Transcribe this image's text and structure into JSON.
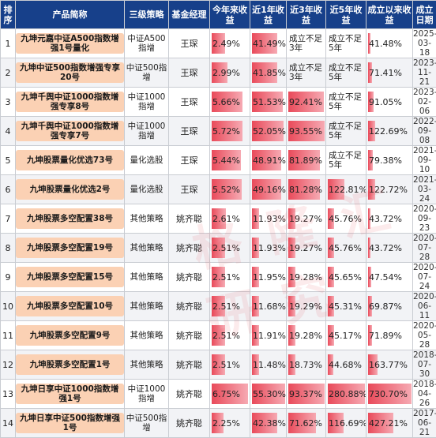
{
  "columns": {
    "idx": "排序",
    "name": "产品简称",
    "category": "三级策略",
    "manager": "基金经理",
    "ytd": "今年来收益",
    "y1": "近1年收益",
    "y3": "近3年收益",
    "y5": "近5年收益",
    "since": "成立以来收益",
    "date": "成立日期"
  },
  "rows": [
    {
      "idx": "1",
      "name": "九坤元嘉中证A500指数增强1号量化",
      "category": "中证A500指增",
      "manager": "王琛",
      "ytd": {
        "text": "2.49%",
        "v": 2.49
      },
      "y1": {
        "text": "41.49%",
        "v": 41.49
      },
      "y3": {
        "text": "成立不足3年",
        "v": null
      },
      "y5": {
        "text": "成立不足5年",
        "v": null
      },
      "since": {
        "text": "41.48%",
        "v": 41.48
      },
      "date": "2025-03-18"
    },
    {
      "idx": "2",
      "name": "九坤中证500指数增强专享20号",
      "category": "中证500指增",
      "manager": "王琛",
      "ytd": {
        "text": "2.99%",
        "v": 2.99
      },
      "y1": {
        "text": "41.85%",
        "v": 41.85
      },
      "y3": {
        "text": "成立不足3年",
        "v": null
      },
      "y5": {
        "text": "成立不足5年",
        "v": null
      },
      "since": {
        "text": "71.41%",
        "v": 71.41
      },
      "date": "2023-11-21"
    },
    {
      "idx": "3",
      "name": "九坤千舆中证1000指数增强专享8号",
      "category": "中证1000指增",
      "manager": "王琛",
      "ytd": {
        "text": "5.66%",
        "v": 5.66
      },
      "y1": {
        "text": "51.53%",
        "v": 51.53
      },
      "y3": {
        "text": "92.41%",
        "v": 92.41
      },
      "y5": {
        "text": "成立不足5年",
        "v": null
      },
      "since": {
        "text": "91.05%",
        "v": 91.05
      },
      "date": "2023-02-06"
    },
    {
      "idx": "4",
      "name": "九坤千舆中证1000指数增强专享7号",
      "category": "中证1000指增",
      "manager": "王琛",
      "ytd": {
        "text": "5.72%",
        "v": 5.72
      },
      "y1": {
        "text": "52.05%",
        "v": 52.05
      },
      "y3": {
        "text": "93.55%",
        "v": 93.55
      },
      "y5": {
        "text": "成立不足5年",
        "v": null
      },
      "since": {
        "text": "122.69%",
        "v": 122.69
      },
      "date": "2022-09-08"
    },
    {
      "idx": "5",
      "name": "九坤股票量化优选73号",
      "category": "量化选股",
      "manager": "王琛",
      "ytd": {
        "text": "5.44%",
        "v": 5.44
      },
      "y1": {
        "text": "48.91%",
        "v": 48.91
      },
      "y3": {
        "text": "81.89%",
        "v": 81.89
      },
      "y5": {
        "text": "成立不足5年",
        "v": null
      },
      "since": {
        "text": "79.38%",
        "v": 79.38
      },
      "date": "2021-09-10"
    },
    {
      "idx": "6",
      "name": "九坤股票量化优选2号",
      "category": "量化选股",
      "manager": "王琛",
      "ytd": {
        "text": "5.52%",
        "v": 5.52
      },
      "y1": {
        "text": "49.16%",
        "v": 49.16
      },
      "y3": {
        "text": "81.28%",
        "v": 81.28
      },
      "y5": {
        "text": "122.81%",
        "v": 122.81
      },
      "since": {
        "text": "122.72%",
        "v": 122.72
      },
      "date": "2021-03-24"
    },
    {
      "idx": "7",
      "name": "九坤股票多空配置38号",
      "category": "其他策略",
      "manager": "姚齐聪",
      "ytd": {
        "text": "2.61%",
        "v": 2.61
      },
      "y1": {
        "text": "11.93%",
        "v": 11.93
      },
      "y3": {
        "text": "19.27%",
        "v": 19.27
      },
      "y5": {
        "text": "45.76%",
        "v": 45.76
      },
      "since": {
        "text": "43.72%",
        "v": 43.72
      },
      "date": "2020-09-23"
    },
    {
      "idx": "8",
      "name": "九坤股票多空配置19号",
      "category": "其他策略",
      "manager": "姚齐聪",
      "ytd": {
        "text": "2.51%",
        "v": 2.51
      },
      "y1": {
        "text": "11.93%",
        "v": 11.93
      },
      "y3": {
        "text": "19.27%",
        "v": 19.27
      },
      "y5": {
        "text": "45.76%",
        "v": 45.76
      },
      "since": {
        "text": "43.72%",
        "v": 43.72
      },
      "date": "2020-07-28"
    },
    {
      "idx": "9",
      "name": "九坤股票多空配置15号",
      "category": "其他策略",
      "manager": "姚齐聪",
      "ytd": {
        "text": "2.51%",
        "v": 2.51
      },
      "y1": {
        "text": "11.95%",
        "v": 11.95
      },
      "y3": {
        "text": "19.28%",
        "v": 19.28
      },
      "y5": {
        "text": "45.65%",
        "v": 45.65
      },
      "since": {
        "text": "47.54%",
        "v": 47.54
      },
      "date": "2020-07-24"
    },
    {
      "idx": "10",
      "name": "九坤股票多空配置10号",
      "category": "其他策略",
      "manager": "姚齐聪",
      "ytd": {
        "text": "2.51%",
        "v": 2.51
      },
      "y1": {
        "text": "11.68%",
        "v": 11.68
      },
      "y3": {
        "text": "19.29%",
        "v": 19.29
      },
      "y5": {
        "text": "45.31%",
        "v": 45.31
      },
      "since": {
        "text": "69.87%",
        "v": 69.87
      },
      "date": "2020-06-11"
    },
    {
      "idx": "11",
      "name": "九坤股票多空配置9号",
      "category": "其他策略",
      "manager": "姚齐聪",
      "ytd": {
        "text": "2.51%",
        "v": 2.51
      },
      "y1": {
        "text": "11.91%",
        "v": 11.91
      },
      "y3": {
        "text": "19.28%",
        "v": 19.28
      },
      "y5": {
        "text": "45.17%",
        "v": 45.17
      },
      "since": {
        "text": "71.89%",
        "v": 71.89
      },
      "date": "2020-05-28"
    },
    {
      "idx": "12",
      "name": "九坤股票多空配置1号",
      "category": "其他策略",
      "manager": "姚齐聪",
      "ytd": {
        "text": "2.51%",
        "v": 2.51
      },
      "y1": {
        "text": "11.48%",
        "v": 11.48
      },
      "y3": {
        "text": "18.73%",
        "v": 18.73
      },
      "y5": {
        "text": "44.68%",
        "v": 44.68
      },
      "since": {
        "text": "163.77%",
        "v": 163.77
      },
      "date": "2018-07-30"
    },
    {
      "idx": "13",
      "name": "九坤日享中证1000指数增强1号",
      "category": "中证1000指增",
      "manager": "姚齐聪",
      "ytd": {
        "text": "6.75%",
        "v": 6.75
      },
      "y1": {
        "text": "55.30%",
        "v": 55.3
      },
      "y3": {
        "text": "93.37%",
        "v": 93.37
      },
      "y5": {
        "text": "280.88%",
        "v": 280.88
      },
      "since": {
        "text": "730.70%",
        "v": 730.7
      },
      "date": "2018-04-26"
    },
    {
      "idx": "14",
      "name": "九坤日享中证500指数增强1号",
      "category": "中证500指增",
      "manager": "姚齐聪",
      "ytd": {
        "text": "2.25%",
        "v": 2.25
      },
      "y1": {
        "text": "42.38%",
        "v": 42.38
      },
      "y3": {
        "text": "71.62%",
        "v": 71.62
      },
      "y5": {
        "text": "116.69%",
        "v": 116.69
      },
      "since": {
        "text": "427.21%",
        "v": 427.21
      },
      "date": "2017-06-21"
    }
  ],
  "bar_maxima": {
    "ytd": 6.75,
    "y1": 55.3,
    "y3": 93.55,
    "y5": 280.88,
    "since": 730.7
  },
  "colors": {
    "header_bg": "#17408a",
    "name_highlight": "#fbd1b4",
    "bar": "#e94a5a"
  }
}
